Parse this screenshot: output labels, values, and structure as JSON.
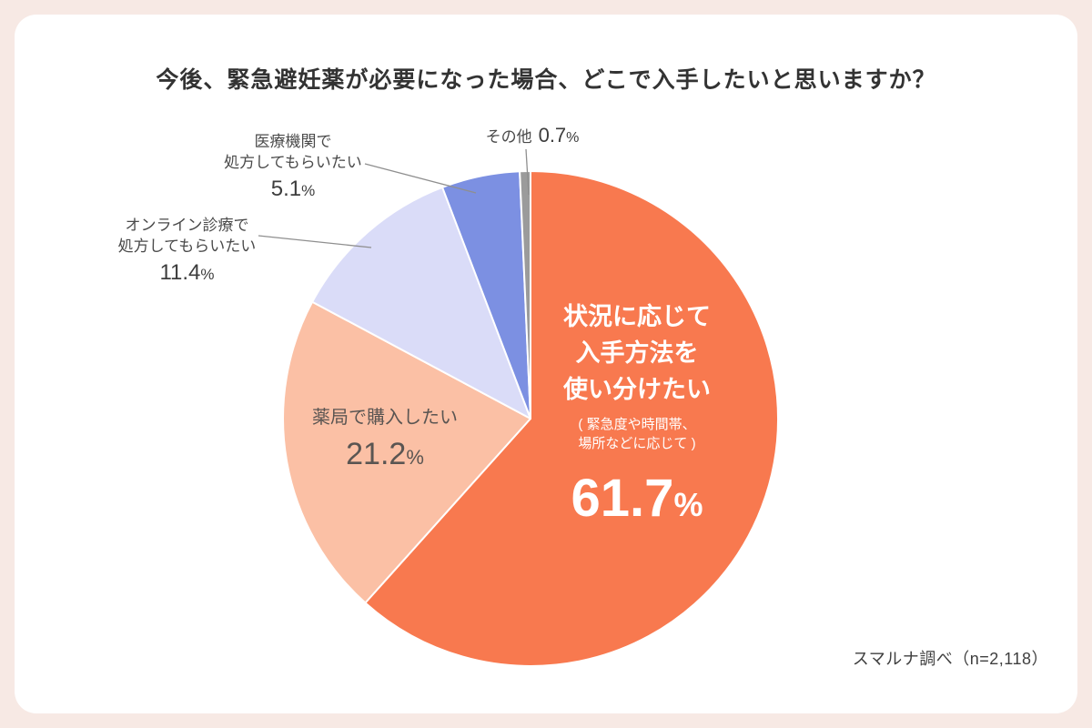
{
  "title": "今後、緊急避妊薬が必要になった場合、どこで入手したいと思いますか？",
  "source": "スマルナ調べ（n=2,118）",
  "colors": {
    "page_background": "#F7E9E4",
    "card_background": "#FFFFFF",
    "main_slice": "#F8794F",
    "pharmacy_slice": "#FBC0A5",
    "online_slice": "#DADCF8",
    "medical_slice": "#7C90E2",
    "other_slice": "#9B9B9B"
  },
  "chart_data": {
    "type": "pie",
    "title": "今後、緊急避妊薬が必要になった場合、どこで入手したいと思いますか？",
    "start_angle_deg": -90,
    "direction": "clockwise",
    "legend_position": "labels-on-chart",
    "source": "スマルナ調べ（n=2,118）",
    "slices": [
      {
        "id": "main",
        "label": "状況に応じて入手方法を使い分けたい",
        "note": "（緊急度や時間帯、場所などに応じて）",
        "value": 61.7,
        "display": "61.7%",
        "color": "#F8794F"
      },
      {
        "id": "pharmacy",
        "label": "薬局で購入したい",
        "value": 21.2,
        "display": "21.2%",
        "color": "#FBC0A5"
      },
      {
        "id": "online",
        "label": "オンライン診療で処方してもらいたい",
        "value": 11.4,
        "display": "11.4%",
        "color": "#DADCF8"
      },
      {
        "id": "medical",
        "label": "医療機関で処方してもらいたい",
        "value": 5.1,
        "display": "5.1%",
        "color": "#7C90E2"
      },
      {
        "id": "other",
        "label": "その他",
        "value": 0.7,
        "display": "0.7%",
        "color": "#9B9B9B"
      }
    ]
  },
  "labels": {
    "main": {
      "line1": "状況に応じて",
      "line2": "入手方法を",
      "line3": "使い分けたい",
      "note_line1": "( 緊急度や時間帯、",
      "note_line2": "場所などに応じて )",
      "num": "61.7",
      "sign": "%"
    },
    "pharmacy": {
      "name": "薬局で購入したい",
      "num": "21.2",
      "sign": "%"
    },
    "online": {
      "line1": "オンライン診療で",
      "line2": "処方してもらいたい",
      "num": "11.4",
      "sign": "%"
    },
    "medical": {
      "line1": "医療機関で",
      "line2": "処方してもらいたい",
      "num": "5.1",
      "sign": "%"
    },
    "other": {
      "name": "その他",
      "num": "0.7",
      "sign": "%"
    }
  }
}
